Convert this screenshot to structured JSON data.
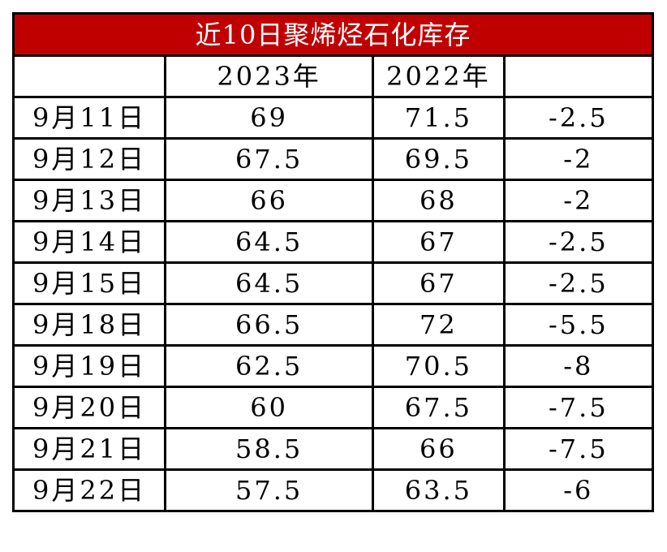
{
  "title": "近10日聚烯烃石化库存",
  "colors": {
    "title_bg": "#C00000",
    "title_text": "#FFFFFF"
  },
  "headers": [
    "",
    "2023年",
    "2022年",
    ""
  ],
  "rows": [
    [
      "9月11日",
      "69",
      "71.5",
      "-2.5"
    ],
    [
      "9月12日",
      "67.5",
      "69.5",
      "-2"
    ],
    [
      "9月13日",
      "66",
      "68",
      "-2"
    ],
    [
      "9月14日",
      "64.5",
      "67",
      "-2.5"
    ],
    [
      "9月15日",
      "64.5",
      "67",
      "-2.5"
    ],
    [
      "9月18日",
      "66.5",
      "72",
      "-5.5"
    ],
    [
      "9月19日",
      "62.5",
      "70.5",
      "-8"
    ],
    [
      "9月20日",
      "60",
      "67.5",
      "-7.5"
    ],
    [
      "9月21日",
      "58.5",
      "66",
      "-7.5"
    ],
    [
      "9月22日",
      "57.5",
      "63.5",
      "-6"
    ]
  ]
}
